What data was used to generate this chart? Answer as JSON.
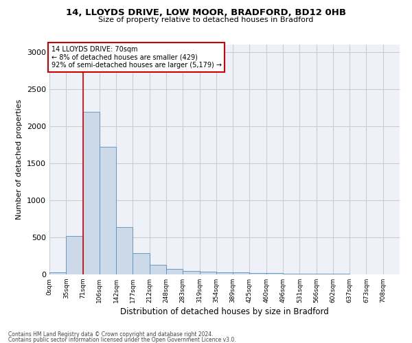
{
  "title_line1": "14, LLOYDS DRIVE, LOW MOOR, BRADFORD, BD12 0HB",
  "title_line2": "Size of property relative to detached houses in Bradford",
  "xlabel": "Distribution of detached houses by size in Bradford",
  "ylabel": "Number of detached properties",
  "bar_color": "#ccd9e8",
  "bar_edge_color": "#5b8db8",
  "grid_color": "#cccccc",
  "background_color": "#eef2f8",
  "annotation_box_color": "#cc0000",
  "bin_labels": [
    "0sqm",
    "35sqm",
    "71sqm",
    "106sqm",
    "142sqm",
    "177sqm",
    "212sqm",
    "248sqm",
    "283sqm",
    "319sqm",
    "354sqm",
    "389sqm",
    "425sqm",
    "460sqm",
    "496sqm",
    "531sqm",
    "566sqm",
    "602sqm",
    "637sqm",
    "673sqm",
    "708sqm"
  ],
  "bar_values": [
    30,
    520,
    2190,
    1720,
    635,
    290,
    130,
    75,
    45,
    35,
    30,
    25,
    20,
    15,
    10,
    5,
    5,
    5,
    3,
    2,
    2
  ],
  "vline_x": 2,
  "property_sqm": "70sqm",
  "pct_smaller": "8%",
  "n_smaller": 429,
  "pct_larger_semi": "92%",
  "n_larger_semi": "5,179",
  "ylim": [
    0,
    3100
  ],
  "yticks": [
    0,
    500,
    1000,
    1500,
    2000,
    2500,
    3000
  ],
  "footer_line1": "Contains HM Land Registry data © Crown copyright and database right 2024.",
  "footer_line2": "Contains public sector information licensed under the Open Government Licence v3.0."
}
